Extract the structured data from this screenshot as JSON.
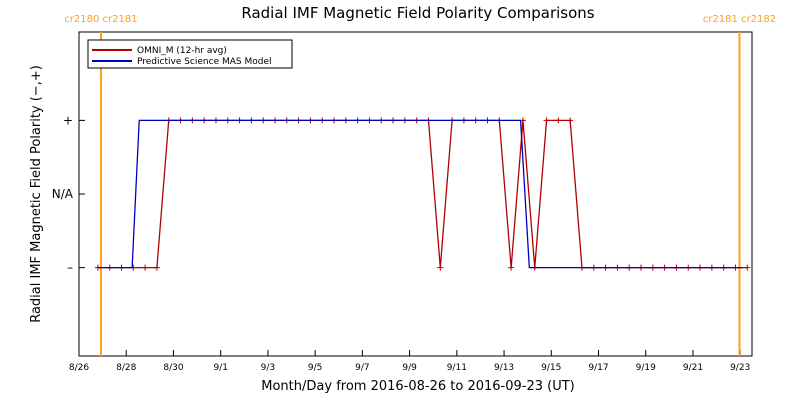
{
  "chart_data": {
    "type": "line",
    "title": "Radial IMF Magnetic Field Polarity Comparisons",
    "x_label": "Month/Day from 2016-08-26 to 2016-09-23 (UT)",
    "y_label": "Radial IMF Magnetic Field Polarity (−,+)",
    "xlim": [
      0,
      28.5
    ],
    "xticks": [
      {
        "value": 0,
        "label": "8/26"
      },
      {
        "value": 2,
        "label": "8/28"
      },
      {
        "value": 4,
        "label": "8/30"
      },
      {
        "value": 6,
        "label": "9/1"
      },
      {
        "value": 8,
        "label": "9/3"
      },
      {
        "value": 10,
        "label": "9/5"
      },
      {
        "value": 12,
        "label": "9/7"
      },
      {
        "value": 14,
        "label": "9/9"
      },
      {
        "value": 16,
        "label": "9/11"
      },
      {
        "value": 18,
        "label": "9/13"
      },
      {
        "value": 20,
        "label": "9/15"
      },
      {
        "value": 22,
        "label": "9/17"
      },
      {
        "value": 24,
        "label": "9/19"
      },
      {
        "value": 26,
        "label": "9/21"
      },
      {
        "value": 28,
        "label": "9/23"
      }
    ],
    "ylim": [
      -2.2,
      2.2
    ],
    "yticks": [
      {
        "value": -1,
        "label": "–"
      },
      {
        "value": 0,
        "label": "N/A"
      },
      {
        "value": 1,
        "label": "+"
      }
    ],
    "vlines": [
      {
        "x": 0.93,
        "label": "cr2180 cr2181",
        "color": "#ff9f1a"
      },
      {
        "x": 27.97,
        "label": "cr2181 cr2182",
        "color": "#ff9f1a"
      }
    ],
    "series": [
      {
        "name": "OMNI_M (12-hr avg)",
        "color": "#b00000",
        "markers": true,
        "x": [
          0.8,
          1.3,
          1.8,
          2.3,
          2.8,
          3.3,
          3.8,
          4.3,
          4.8,
          5.3,
          5.8,
          6.3,
          6.8,
          7.3,
          7.8,
          8.3,
          8.8,
          9.3,
          9.8,
          10.3,
          10.8,
          11.3,
          11.8,
          12.3,
          12.8,
          13.3,
          13.8,
          14.3,
          14.8,
          15.3,
          15.8,
          16.3,
          16.8,
          17.3,
          17.8,
          18.3,
          18.8,
          19.3,
          19.8,
          20.3,
          20.8,
          21.3,
          21.8,
          22.3,
          22.8,
          23.3,
          23.8,
          24.3,
          24.8,
          25.3,
          25.8,
          26.3,
          26.8,
          27.3,
          27.8,
          28.3
        ],
        "values": [
          -1,
          -1,
          -1,
          -1,
          -1,
          -1,
          1,
          1,
          1,
          1,
          1,
          1,
          1,
          1,
          1,
          1,
          1,
          1,
          1,
          1,
          1,
          1,
          1,
          1,
          1,
          1,
          1,
          1,
          1,
          -1,
          1,
          1,
          1,
          1,
          1,
          -1,
          1,
          -1,
          1,
          1,
          1,
          -1,
          -1,
          -1,
          -1,
          -1,
          -1,
          -1,
          -1,
          -1,
          -1,
          -1,
          -1,
          -1,
          -1,
          -1
        ]
      },
      {
        "name": "Predictive Science MAS Model",
        "color": "#0000c0",
        "markers": false,
        "x": [
          0.8,
          2.25,
          2.55,
          18.7,
          19.07,
          28.1
        ],
        "values": [
          -1,
          -1,
          1,
          1,
          -1,
          -1
        ]
      }
    ]
  }
}
